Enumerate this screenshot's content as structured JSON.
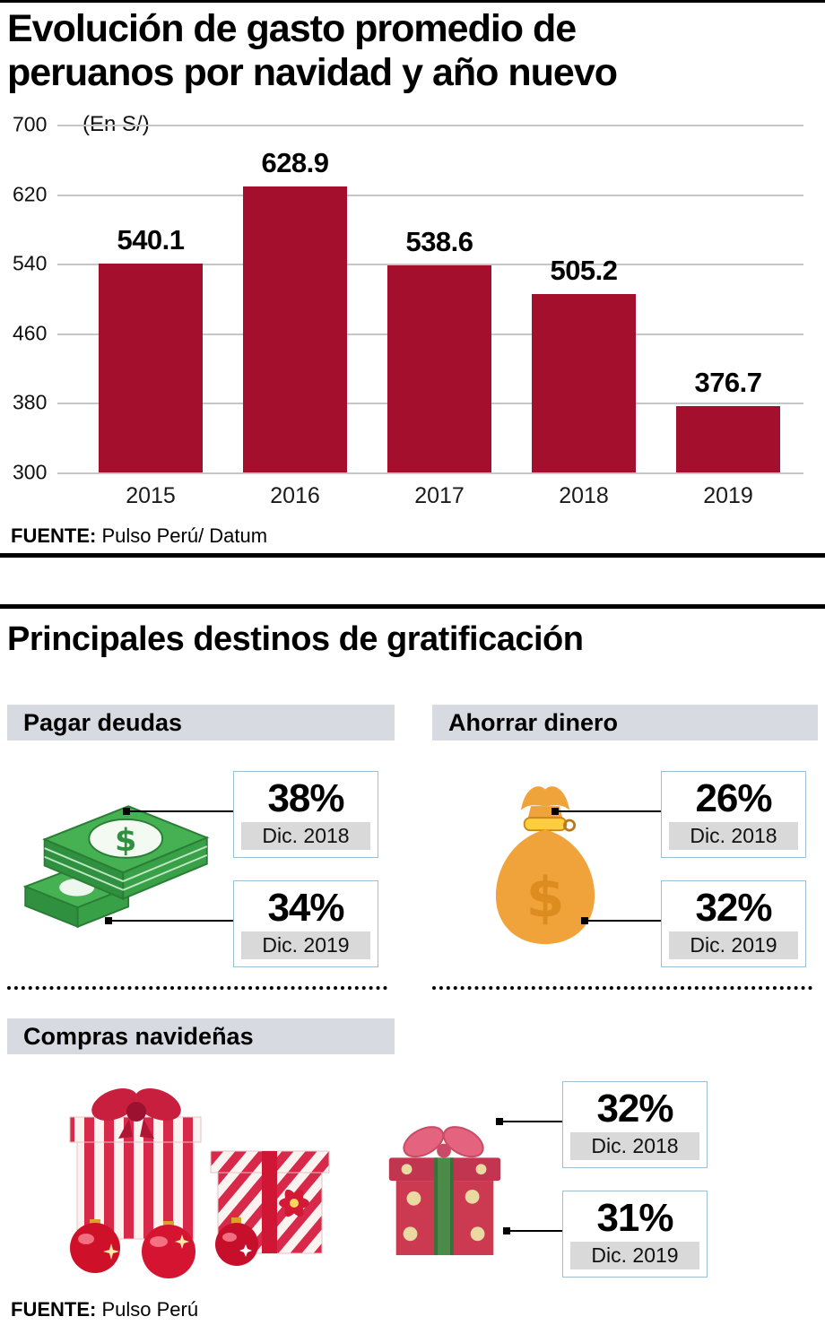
{
  "title": {
    "line1": "Evolución de gasto promedio  de",
    "line2": "peruanos  por navidad y año nuevo"
  },
  "chart_data": {
    "type": "bar",
    "title": "Evolución de gasto promedio de peruanos por navidad y año nuevo",
    "unit_label": "(En S/)",
    "categories": [
      "2015",
      "2016",
      "2017",
      "2018",
      "2019"
    ],
    "values": [
      540.1,
      628.9,
      538.6,
      505.2,
      376.7
    ],
    "ylim": [
      300,
      700
    ],
    "yticks": [
      700,
      620,
      540,
      460,
      380,
      300
    ],
    "grid": true,
    "legend": false,
    "bar_color": "#a50f2e",
    "source": {
      "label": "FUENTE:",
      "text": "Pulso Perú/ Datum"
    }
  },
  "section2": {
    "title": "Principales destinos de gratificación",
    "cards": [
      {
        "header": "Pagar deudas",
        "icon": "money-stack-icon",
        "stats": [
          {
            "pct": "38%",
            "date": "Dic. 2018"
          },
          {
            "pct": "34%",
            "date": "Dic. 2019"
          }
        ]
      },
      {
        "header": "Ahorrar dinero",
        "icon": "money-bag-icon",
        "stats": [
          {
            "pct": "26%",
            "date": "Dic. 2018"
          },
          {
            "pct": "32%",
            "date": "Dic. 2019"
          }
        ]
      },
      {
        "header": "Compras navideñas",
        "icon": "christmas-gifts-icon",
        "stats": [
          {
            "pct": "32%",
            "date": "Dic. 2018"
          },
          {
            "pct": "31%",
            "date": "Dic. 2019"
          }
        ]
      }
    ],
    "source": {
      "label": "FUENTE:",
      "text": "Pulso Perú"
    }
  },
  "colors": {
    "bar": "#a50f2e",
    "header_bg": "#d7dbe1",
    "date_bg": "#d9d9d9",
    "box_border": "#9cc0d2",
    "money_green": "#3fae49",
    "bag_orange": "#f0a33a",
    "gift_red": "#d8294a"
  }
}
